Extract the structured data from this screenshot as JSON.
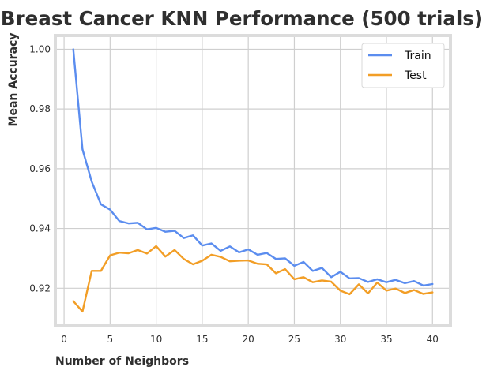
{
  "chart_data": {
    "type": "line",
    "title": "Breast Cancer KNN Performance (500 trials)",
    "xlabel": "Number of Neighbors",
    "ylabel": "Mean Accuracy",
    "xlim": [
      -0.95,
      41.95
    ],
    "ylim": [
      0.9074,
      1.0046
    ],
    "xticks": [
      0,
      5,
      10,
      15,
      20,
      25,
      30,
      35,
      40
    ],
    "yticks": [
      0.92,
      0.94,
      0.96,
      0.98,
      1.0
    ],
    "xtick_labels": [
      "0",
      "5",
      "10",
      "15",
      "20",
      "25",
      "30",
      "35",
      "40"
    ],
    "ytick_labels": [
      "0.92",
      "0.94",
      "0.96",
      "0.98",
      "1.00"
    ],
    "grid": true,
    "legend_position": "top-right",
    "x": [
      1,
      2,
      3,
      4,
      5,
      6,
      7,
      8,
      9,
      10,
      11,
      12,
      13,
      14,
      15,
      16,
      17,
      18,
      19,
      20,
      21,
      22,
      23,
      24,
      25,
      26,
      27,
      28,
      29,
      30,
      31,
      32,
      33,
      34,
      35,
      36,
      37,
      38,
      39,
      40
    ],
    "series": [
      {
        "name": "Train",
        "color": "#5b8def",
        "values": [
          1.0,
          0.9665,
          0.9557,
          0.9481,
          0.9463,
          0.9425,
          0.9417,
          0.9419,
          0.9397,
          0.9402,
          0.9389,
          0.9392,
          0.9368,
          0.9377,
          0.9343,
          0.935,
          0.9325,
          0.934,
          0.932,
          0.933,
          0.9312,
          0.9318,
          0.9298,
          0.93,
          0.9275,
          0.9288,
          0.9258,
          0.9268,
          0.9237,
          0.9255,
          0.9233,
          0.9234,
          0.9221,
          0.923,
          0.922,
          0.9228,
          0.9217,
          0.9224,
          0.9209,
          0.9214
        ]
      },
      {
        "name": "Test",
        "color": "#f29e26",
        "values": [
          0.9157,
          0.9122,
          0.9258,
          0.9258,
          0.931,
          0.9319,
          0.9317,
          0.9328,
          0.9316,
          0.9341,
          0.9306,
          0.9328,
          0.9298,
          0.928,
          0.9292,
          0.9312,
          0.9305,
          0.929,
          0.9292,
          0.9293,
          0.9282,
          0.928,
          0.925,
          0.9264,
          0.923,
          0.9237,
          0.922,
          0.9226,
          0.9222,
          0.9192,
          0.918,
          0.9213,
          0.9183,
          0.9219,
          0.9192,
          0.9199,
          0.9184,
          0.9194,
          0.9181,
          0.9186
        ]
      }
    ]
  },
  "colors": {
    "frame": "#dcdcdc",
    "grid": "#cfcfcf",
    "text": "#2f2f2f"
  }
}
